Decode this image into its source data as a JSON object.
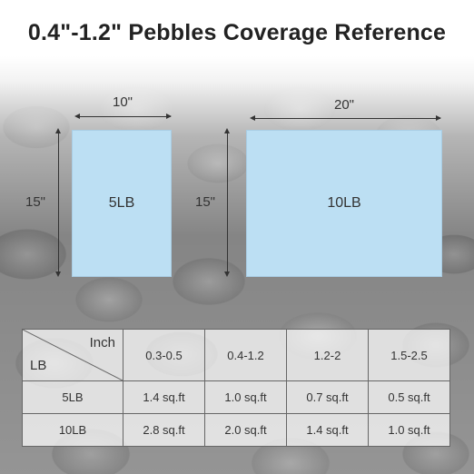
{
  "title": "0.4\"-1.2\" Pebbles Coverage Reference",
  "panels": [
    {
      "label": "5LB",
      "width_label": "10\"",
      "height_label": "15\""
    },
    {
      "label": "10LB",
      "width_label": "20\"",
      "height_label": "15\""
    }
  ],
  "table": {
    "corner_top": "Inch",
    "corner_bottom": "LB",
    "columns": [
      "0.3-0.5",
      "0.4-1.2",
      "1.2-2",
      "1.5-2.5"
    ],
    "rows": [
      {
        "label": "5LB",
        "values": [
          "1.4 sq.ft",
          "1.0 sq.ft",
          "0.7 sq.ft",
          "0.5 sq.ft"
        ]
      },
      {
        "label": "10LB",
        "values": [
          "2.8 sq.ft",
          "2.0 sq.ft",
          "1.4 sq.ft",
          "1.0 sq.ft"
        ]
      }
    ]
  },
  "colors": {
    "panel": "#bcdff3",
    "background": "pebble-gray"
  }
}
